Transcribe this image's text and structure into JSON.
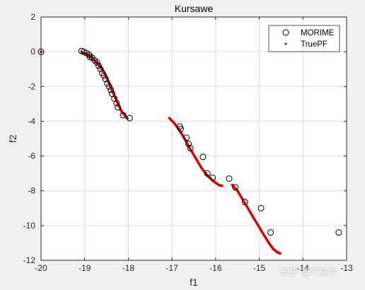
{
  "watermark": "知乎 @IT猿手",
  "chart_data": {
    "type": "scatter",
    "title": "Kursawe",
    "xlabel": "f1",
    "ylabel": "f2",
    "xlim": [
      -20,
      -13
    ],
    "ylim": [
      -12,
      2
    ],
    "xticks": [
      -20,
      -19,
      -18,
      -17,
      -16,
      -15,
      -14,
      -13
    ],
    "yticks": [
      -12,
      -10,
      -8,
      -6,
      -4,
      -2,
      0,
      2
    ],
    "grid": true,
    "legend_position": "top-right",
    "colors": {
      "morime": "#000000",
      "truepf": "#dd0000",
      "grid": "#dcdcdc",
      "axes_bg": "#ffffff"
    },
    "series": [
      {
        "name": "MORIME",
        "marker": "open-circle",
        "points": [
          [
            -20.0,
            0.0
          ],
          [
            -19.07,
            0.04
          ],
          [
            -19.02,
            0.0
          ],
          [
            -18.96,
            -0.08
          ],
          [
            -18.9,
            -0.18
          ],
          [
            -18.88,
            -0.3
          ],
          [
            -18.83,
            -0.35
          ],
          [
            -18.77,
            -0.5
          ],
          [
            -18.72,
            -0.62
          ],
          [
            -18.68,
            -0.8
          ],
          [
            -18.64,
            -1.0
          ],
          [
            -18.6,
            -1.22
          ],
          [
            -18.56,
            -1.38
          ],
          [
            -18.52,
            -1.58
          ],
          [
            -18.48,
            -1.82
          ],
          [
            -18.44,
            -2.0
          ],
          [
            -18.4,
            -2.2
          ],
          [
            -18.37,
            -2.42
          ],
          [
            -18.32,
            -2.7
          ],
          [
            -18.27,
            -2.96
          ],
          [
            -18.24,
            -3.2
          ],
          [
            -18.12,
            -3.65
          ],
          [
            -17.97,
            -3.82
          ],
          [
            -16.82,
            -4.3
          ],
          [
            -16.8,
            -4.45
          ],
          [
            -16.67,
            -4.95
          ],
          [
            -16.62,
            -5.3
          ],
          [
            -16.58,
            -5.55
          ],
          [
            -16.29,
            -6.05
          ],
          [
            -16.19,
            -7.0
          ],
          [
            -16.07,
            -7.25
          ],
          [
            -15.69,
            -7.3
          ],
          [
            -15.55,
            -7.8
          ],
          [
            -15.33,
            -8.65
          ],
          [
            -14.96,
            -9.0
          ],
          [
            -14.74,
            -10.4
          ],
          [
            -13.18,
            -10.4
          ]
        ]
      },
      {
        "name": "TruePF",
        "marker": "dot",
        "segments": [
          {
            "x0": -20.0,
            "x1": -20.0,
            "kind": "point",
            "y": 0.0
          },
          {
            "kind": "curve",
            "points": [
              [
                -19.06,
                -0.02
              ],
              [
                -18.95,
                -0.14
              ],
              [
                -18.85,
                -0.32
              ],
              [
                -18.75,
                -0.55
              ],
              [
                -18.65,
                -0.82
              ],
              [
                -18.55,
                -1.2
              ],
              [
                -18.45,
                -1.75
              ],
              [
                -18.35,
                -2.35
              ],
              [
                -18.25,
                -2.95
              ],
              [
                -18.15,
                -3.45
              ],
              [
                -18.02,
                -3.85
              ]
            ]
          },
          {
            "kind": "curve",
            "points": [
              [
                -17.06,
                -3.82
              ],
              [
                -16.95,
                -4.1
              ],
              [
                -16.82,
                -4.55
              ],
              [
                -16.7,
                -5.05
              ],
              [
                -16.58,
                -5.6
              ],
              [
                -16.45,
                -6.15
              ],
              [
                -16.32,
                -6.7
              ],
              [
                -16.18,
                -7.15
              ],
              [
                -16.05,
                -7.45
              ],
              [
                -15.92,
                -7.68
              ],
              [
                -15.85,
                -7.72
              ]
            ]
          },
          {
            "kind": "curve",
            "points": [
              [
                -15.62,
                -7.66
              ],
              [
                -15.5,
                -8.0
              ],
              [
                -15.38,
                -8.5
              ],
              [
                -15.25,
                -9.05
              ],
              [
                -15.12,
                -9.6
              ],
              [
                -15.0,
                -10.1
              ],
              [
                -14.88,
                -10.6
              ],
              [
                -14.78,
                -11.0
              ],
              [
                -14.68,
                -11.35
              ],
              [
                -14.58,
                -11.55
              ],
              [
                -14.52,
                -11.6
              ]
            ]
          }
        ]
      }
    ]
  }
}
